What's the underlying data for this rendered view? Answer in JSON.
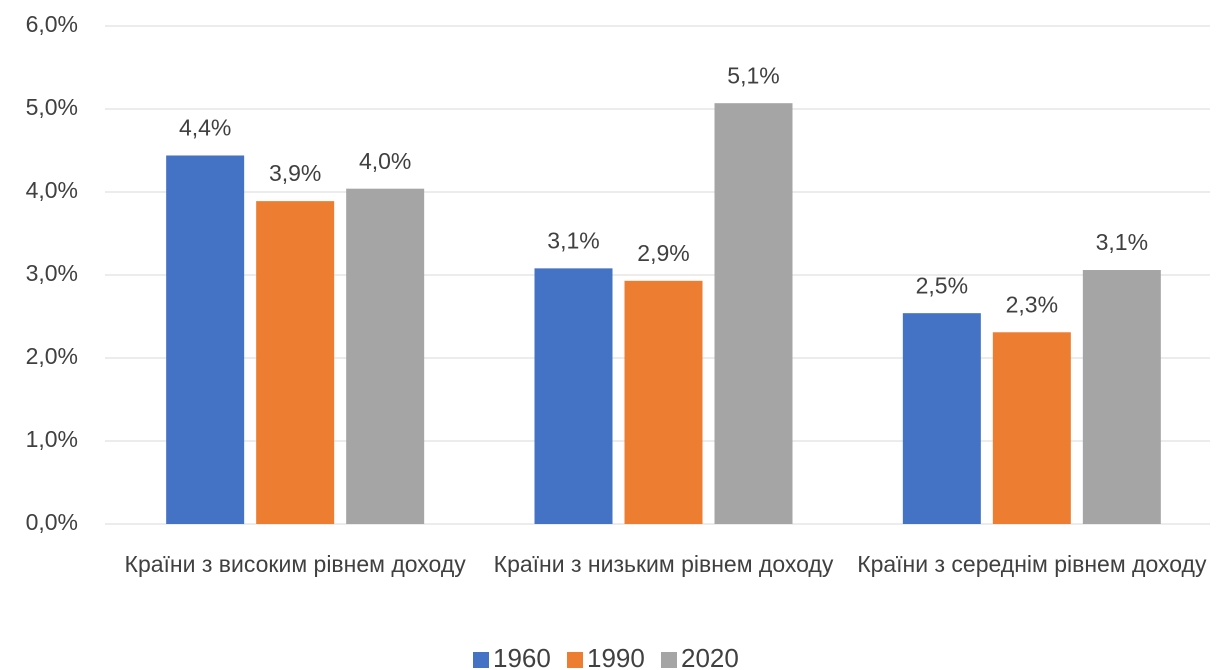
{
  "chart_data": {
    "type": "bar",
    "categories": [
      "Країни з високим рівнем доходу",
      "Країни з низьким рівнем доходу",
      "Країни з середнім рівнем доходу"
    ],
    "series": [
      {
        "name": "1960",
        "color": "#4472c4",
        "values": [
          4.44,
          3.08,
          2.54
        ],
        "value_labels": [
          "4,4%",
          "3,1%",
          "2,5%"
        ]
      },
      {
        "name": "1990",
        "color": "#ed7d31",
        "values": [
          3.89,
          2.93,
          2.31
        ],
        "value_labels": [
          "3,9%",
          "2,9%",
          "2,3%"
        ]
      },
      {
        "name": "2020",
        "color": "#a5a5a5",
        "values": [
          4.04,
          5.07,
          3.06
        ],
        "value_labels": [
          "4,0%",
          "5,1%",
          "3,1%"
        ]
      }
    ],
    "ylim": [
      0,
      6
    ],
    "yticks": [
      {
        "value": 0,
        "label": "0,0%"
      },
      {
        "value": 1,
        "label": "1,0%"
      },
      {
        "value": 2,
        "label": "2,0%"
      },
      {
        "value": 3,
        "label": "3,0%"
      },
      {
        "value": 4,
        "label": "4,0%"
      },
      {
        "value": 5,
        "label": "5,0%"
      },
      {
        "value": 6,
        "label": "6,0%"
      }
    ],
    "grid": true,
    "legend": "bottom"
  }
}
